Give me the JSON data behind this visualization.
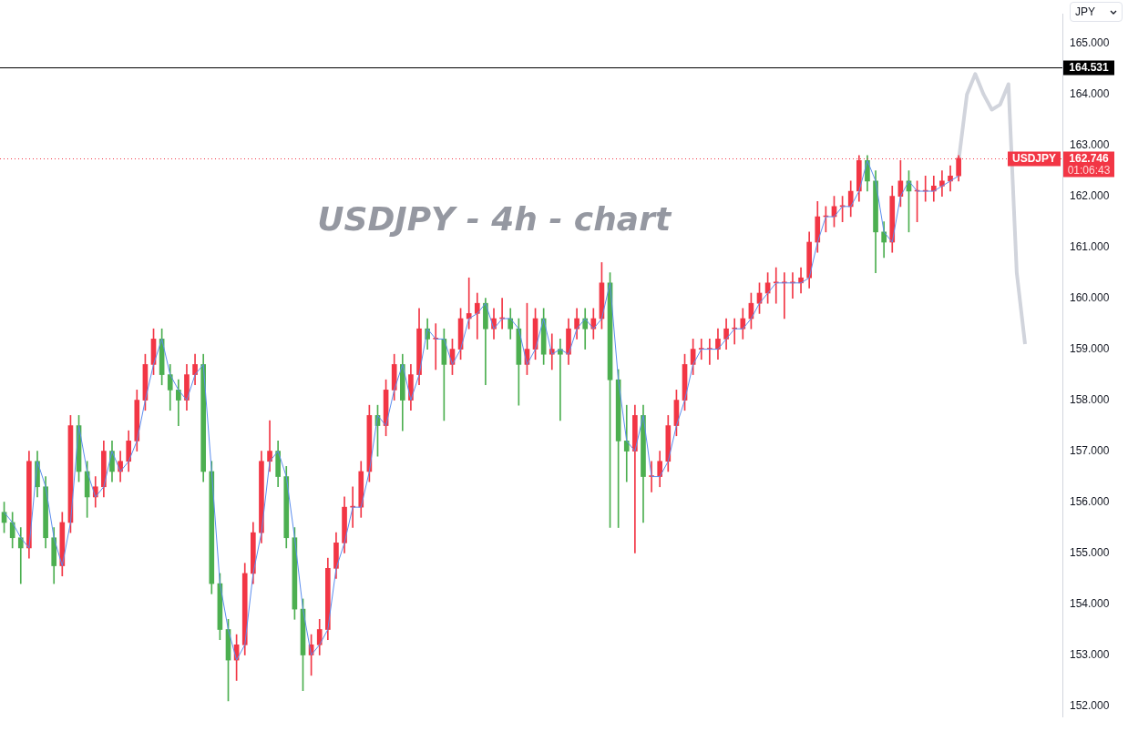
{
  "chart_data": {
    "type": "candlestick",
    "title": "USDJPY - 4h - chart",
    "categories": [
      null,
      null,
      null,
      null,
      null,
      null,
      null,
      null,
      null,
      null,
      null,
      null,
      null,
      null,
      null,
      null,
      null,
      null,
      null,
      null,
      null,
      null,
      null,
      null,
      null,
      null,
      null,
      null,
      null,
      null,
      null,
      null,
      null,
      null,
      null,
      null,
      null,
      null,
      null,
      null,
      null,
      null,
      null,
      null,
      null,
      null,
      null,
      null,
      null,
      null,
      null,
      null,
      null,
      null,
      null,
      null,
      null,
      null,
      null,
      null,
      null,
      null,
      null,
      null,
      null,
      null,
      null,
      null,
      null,
      null,
      null,
      null,
      null,
      null,
      null,
      null,
      null,
      null,
      null,
      null,
      null,
      null,
      null,
      null,
      null,
      null,
      null,
      null,
      null,
      null,
      null,
      null,
      null,
      null,
      null,
      null,
      null,
      null,
      null,
      null,
      null,
      null,
      null,
      null,
      null,
      null,
      null,
      null,
      null,
      null,
      null,
      null,
      null,
      null,
      null,
      null,
      null,
      null,
      null,
      null,
      null,
      null,
      null,
      null,
      null,
      null,
      null,
      null
    ],
    "series": [
      {
        "type": "line",
        "color": "#d1d4dc",
        "values": [
          null,
          null,
          null,
          null,
          null,
          null,
          null,
          null,
          null,
          null,
          null,
          null,
          null,
          null,
          null,
          null,
          null,
          null,
          null,
          null,
          null,
          null,
          null,
          null,
          null,
          null,
          null,
          null,
          null,
          null,
          null,
          null,
          null,
          null,
          null,
          null,
          null,
          null,
          null,
          null,
          null,
          null,
          null,
          null,
          null,
          null,
          null,
          null,
          null,
          null,
          null,
          null,
          null,
          null,
          null,
          null,
          null,
          null,
          null,
          null,
          null,
          null,
          null,
          null,
          null,
          null,
          null,
          null,
          null,
          null,
          null,
          null,
          null,
          null,
          null,
          null,
          null,
          null,
          null,
          null,
          null,
          null,
          null,
          null,
          null,
          null,
          null,
          null,
          null,
          null,
          null,
          null,
          null,
          null,
          null,
          null,
          null,
          null,
          null,
          null,
          null,
          null,
          null,
          null,
          null,
          null,
          null,
          null,
          null,
          null,
          null,
          null,
          null,
          null,
          null,
          162.7,
          164.0,
          164.4,
          164.0,
          163.7,
          163.8,
          164.2,
          160.5,
          159.1,
          null,
          null,
          null,
          null
        ]
      },
      {
        "ohlc": [
          [
            155.8,
            156.0,
            155.4,
            155.6
          ],
          [
            155.6,
            155.8,
            155.1,
            155.3
          ],
          [
            155.3,
            155.5,
            154.4,
            155.1
          ],
          [
            155.1,
            157.0,
            154.9,
            156.8
          ],
          [
            156.8,
            157.0,
            156.1,
            156.3
          ],
          [
            156.3,
            156.5,
            155.1,
            155.3
          ],
          [
            155.3,
            155.5,
            154.4,
            154.75
          ],
          [
            154.75,
            155.8,
            154.55,
            155.6
          ],
          [
            155.6,
            157.7,
            155.4,
            157.5
          ],
          [
            157.5,
            157.7,
            156.4,
            156.6
          ],
          [
            156.6,
            156.8,
            155.7,
            156.1
          ],
          [
            156.1,
            156.5,
            155.9,
            156.3
          ],
          [
            156.3,
            157.2,
            156.1,
            157.0
          ],
          [
            157.0,
            157.2,
            156.4,
            156.6
          ],
          [
            156.6,
            157.0,
            156.4,
            156.8
          ],
          [
            156.8,
            157.4,
            156.6,
            157.2
          ],
          [
            157.2,
            158.2,
            157.0,
            158.0
          ],
          [
            158.0,
            158.9,
            157.8,
            158.7
          ],
          [
            158.7,
            159.4,
            158.5,
            159.2
          ],
          [
            159.2,
            159.4,
            158.3,
            158.5
          ],
          [
            158.5,
            158.7,
            157.8,
            158.2
          ],
          [
            158.2,
            158.4,
            157.5,
            158.0
          ],
          [
            158.0,
            158.7,
            157.8,
            158.5
          ],
          [
            158.5,
            158.9,
            158.3,
            158.7
          ],
          [
            158.7,
            158.9,
            156.4,
            156.6
          ],
          [
            156.6,
            156.8,
            154.2,
            154.4
          ],
          [
            154.4,
            154.6,
            153.3,
            153.5
          ],
          [
            153.5,
            153.7,
            152.1,
            152.9
          ],
          [
            152.9,
            153.4,
            152.5,
            153.2
          ],
          [
            153.2,
            154.8,
            153.0,
            154.6
          ],
          [
            154.6,
            155.6,
            154.4,
            155.4
          ],
          [
            155.4,
            157.0,
            155.2,
            156.8
          ],
          [
            156.8,
            157.6,
            156.6,
            157.0
          ],
          [
            157.0,
            157.2,
            156.3,
            156.5
          ],
          [
            156.5,
            156.7,
            155.1,
            155.3
          ],
          [
            155.3,
            155.5,
            153.7,
            153.9
          ],
          [
            153.9,
            154.1,
            152.3,
            153.0
          ],
          [
            153.0,
            153.4,
            152.6,
            153.2
          ],
          [
            153.2,
            153.7,
            153.0,
            153.5
          ],
          [
            153.5,
            154.9,
            153.3,
            154.7
          ],
          [
            154.7,
            155.4,
            154.5,
            155.2
          ],
          [
            155.2,
            156.1,
            155.0,
            155.9
          ],
          [
            155.9,
            156.3,
            155.5,
            155.9
          ],
          [
            155.9,
            156.8,
            155.7,
            156.6
          ],
          [
            156.6,
            157.9,
            156.4,
            157.7
          ],
          [
            157.7,
            157.9,
            156.9,
            157.5
          ],
          [
            157.5,
            158.4,
            157.3,
            158.2
          ],
          [
            158.2,
            158.9,
            158.0,
            158.7
          ],
          [
            158.7,
            158.9,
            157.4,
            158.0
          ],
          [
            158.0,
            158.7,
            157.8,
            158.5
          ],
          [
            158.5,
            159.8,
            158.3,
            159.4
          ],
          [
            159.4,
            159.6,
            159.0,
            159.2
          ],
          [
            159.2,
            159.5,
            158.6,
            159.2
          ],
          [
            159.2,
            159.4,
            157.6,
            158.7
          ],
          [
            158.7,
            159.2,
            158.5,
            159.0
          ],
          [
            159.0,
            159.8,
            158.8,
            159.6
          ],
          [
            159.6,
            160.4,
            159.4,
            159.7
          ],
          [
            159.7,
            160.1,
            159.2,
            159.9
          ],
          [
            159.9,
            160.0,
            158.3,
            159.4
          ],
          [
            159.4,
            159.8,
            159.2,
            159.6
          ],
          [
            159.6,
            160.0,
            159.4,
            159.6
          ],
          [
            159.6,
            159.8,
            159.2,
            159.4
          ],
          [
            159.4,
            159.6,
            157.9,
            158.7
          ],
          [
            158.7,
            159.9,
            158.5,
            159.0
          ],
          [
            159.0,
            159.8,
            158.8,
            159.6
          ],
          [
            159.6,
            159.8,
            158.7,
            158.9
          ],
          [
            158.9,
            159.3,
            158.6,
            159.0
          ],
          [
            159.0,
            159.2,
            157.6,
            158.9
          ],
          [
            158.9,
            159.6,
            158.7,
            159.4
          ],
          [
            159.4,
            159.8,
            159.2,
            159.6
          ],
          [
            159.6,
            159.8,
            159.0,
            159.4
          ],
          [
            159.4,
            159.8,
            159.2,
            159.6
          ],
          [
            159.6,
            160.7,
            159.4,
            160.3
          ],
          [
            160.3,
            160.5,
            155.5,
            158.4
          ],
          [
            158.4,
            158.6,
            155.5,
            157.2
          ],
          [
            157.2,
            157.9,
            156.4,
            157.0
          ],
          [
            157.0,
            157.9,
            155.0,
            157.7
          ],
          [
            157.7,
            157.9,
            155.6,
            156.5
          ],
          [
            156.5,
            156.8,
            156.2,
            156.5
          ],
          [
            156.5,
            157.0,
            156.3,
            156.8
          ],
          [
            156.8,
            157.7,
            156.6,
            157.5
          ],
          [
            157.5,
            158.2,
            157.3,
            158.0
          ],
          [
            158.0,
            158.9,
            157.8,
            158.7
          ],
          [
            158.7,
            159.2,
            158.5,
            159.0
          ],
          [
            159.0,
            159.2,
            158.8,
            159.0
          ],
          [
            159.0,
            159.2,
            158.7,
            159.0
          ],
          [
            159.0,
            159.4,
            158.8,
            159.2
          ],
          [
            159.2,
            159.6,
            159.0,
            159.4
          ],
          [
            159.4,
            159.6,
            159.1,
            159.4
          ],
          [
            159.4,
            159.8,
            159.2,
            159.6
          ],
          [
            159.6,
            160.1,
            159.4,
            159.9
          ],
          [
            159.9,
            160.3,
            159.7,
            160.1
          ],
          [
            160.1,
            160.5,
            159.9,
            160.3
          ],
          [
            160.3,
            160.6,
            159.9,
            160.3
          ],
          [
            160.3,
            160.5,
            159.6,
            160.3
          ],
          [
            160.3,
            160.5,
            160.0,
            160.3
          ],
          [
            160.3,
            160.6,
            160.1,
            160.4
          ],
          [
            160.4,
            161.3,
            160.2,
            161.1
          ],
          [
            161.1,
            161.9,
            160.9,
            161.6
          ],
          [
            161.6,
            161.8,
            161.3,
            161.6
          ],
          [
            161.6,
            162.0,
            161.4,
            161.8
          ],
          [
            161.8,
            162.0,
            161.5,
            161.8
          ],
          [
            161.8,
            162.3,
            161.6,
            162.1
          ],
          [
            162.1,
            162.8,
            161.9,
            162.7
          ],
          [
            162.7,
            162.8,
            162.1,
            162.3
          ],
          [
            162.3,
            162.5,
            160.5,
            161.3
          ],
          [
            161.3,
            161.5,
            160.8,
            161.1
          ],
          [
            161.1,
            162.2,
            160.9,
            162.0
          ],
          [
            162.0,
            162.7,
            161.8,
            162.3
          ],
          [
            162.3,
            162.5,
            161.3,
            162.1
          ],
          [
            162.1,
            162.3,
            161.5,
            162.1
          ],
          [
            162.1,
            162.4,
            161.9,
            162.1
          ],
          [
            162.1,
            162.4,
            161.9,
            162.2
          ],
          [
            162.2,
            162.5,
            162.0,
            162.3
          ],
          [
            162.3,
            162.6,
            162.1,
            162.4
          ],
          [
            162.4,
            162.8,
            162.3,
            162.746
          ],
          null,
          null,
          null,
          null,
          null,
          null,
          null,
          null,
          null,
          null,
          null,
          null
        ],
        "colors": [
          "#4caf50",
          "#4caf50",
          "#4caf50",
          "#f23645",
          "#4caf50",
          "#4caf50",
          "#4caf50",
          "#f23645",
          "#f23645",
          "#4caf50",
          "#4caf50",
          "#f23645",
          "#f23645",
          "#4caf50",
          "#f23645",
          "#f23645",
          "#f23645",
          "#f23645",
          "#f23645",
          "#4caf50",
          "#4caf50",
          "#4caf50",
          "#f23645",
          "#f23645",
          "#4caf50",
          "#4caf50",
          "#4caf50",
          "#4caf50",
          "#f23645",
          "#f23645",
          "#f23645",
          "#f23645",
          "#f23645",
          "#4caf50",
          "#4caf50",
          "#4caf50",
          "#4caf50",
          "#f23645",
          "#f23645",
          "#f23645",
          "#f23645",
          "#f23645",
          "#f23645",
          "#f23645",
          "#f23645",
          "#4caf50",
          "#f23645",
          "#f23645",
          "#4caf50",
          "#f23645",
          "#f23645",
          "#4caf50",
          "#f23645",
          "#4caf50",
          "#f23645",
          "#f23645",
          "#f23645",
          "#f23645",
          "#4caf50",
          "#f23645",
          "#f23645",
          "#4caf50",
          "#4caf50",
          "#f23645",
          "#f23645",
          "#4caf50",
          "#f23645",
          "#4caf50",
          "#f23645",
          "#f23645",
          "#4caf50",
          "#f23645",
          "#f23645",
          "#4caf50",
          "#4caf50",
          "#4caf50",
          "#f23645",
          "#4caf50",
          "#f23645",
          "#f23645",
          "#f23645",
          "#f23645",
          "#f23645",
          "#f23645",
          "#f23645",
          "#f23645",
          "#f23645",
          "#f23645",
          "#f23645",
          "#f23645",
          "#f23645",
          "#f23645",
          "#f23645",
          "#f23645",
          "#f23645",
          "#f23645",
          "#f23645",
          "#f23645",
          "#f23645",
          "#f23645",
          "#f23645",
          "#f23645",
          "#f23645",
          "#f23645",
          "#4caf50",
          "#4caf50",
          "#4caf50",
          "#f23645",
          "#f23645",
          "#4caf50",
          "#f23645",
          "#f23645",
          "#f23645",
          "#f23645",
          "#f23645",
          "#f23645",
          null,
          null,
          null,
          null,
          null,
          null,
          null,
          null,
          null,
          null,
          null,
          null
        ]
      },
      {
        "type": "line",
        "color": "#5b8def",
        "values": [
          155.8,
          155.6,
          155.3,
          155.1,
          156.8,
          156.3,
          155.3,
          154.75,
          155.6,
          157.5,
          156.6,
          156.1,
          156.3,
          157.0,
          156.6,
          156.8,
          157.2,
          158.0,
          158.7,
          159.2,
          158.5,
          158.2,
          158.0,
          158.5,
          158.7,
          156.6,
          154.4,
          153.5,
          152.9,
          153.2,
          154.6,
          155.4,
          156.8,
          157.0,
          156.5,
          155.3,
          153.9,
          153.0,
          153.2,
          153.5,
          154.7,
          155.2,
          155.9,
          155.9,
          156.6,
          157.7,
          157.5,
          158.2,
          158.7,
          158.0,
          158.5,
          159.4,
          159.2,
          159.2,
          158.7,
          159.0,
          159.6,
          159.7,
          159.9,
          159.4,
          159.6,
          159.6,
          159.4,
          158.7,
          159.0,
          159.6,
          158.9,
          159.0,
          158.9,
          159.4,
          159.6,
          159.4,
          159.6,
          160.3,
          158.4,
          157.2,
          157.0,
          157.7,
          156.5,
          156.5,
          156.8,
          157.5,
          158.0,
          158.7,
          159.0,
          159.0,
          159.0,
          159.2,
          159.4,
          159.4,
          159.6,
          159.9,
          160.1,
          160.3,
          160.3,
          160.3,
          160.3,
          160.4,
          161.1,
          161.6,
          161.6,
          161.8,
          161.8,
          162.1,
          162.7,
          162.3,
          161.3,
          161.1,
          162.0,
          162.3,
          162.1,
          162.1,
          162.1,
          162.2,
          162.3,
          162.4,
          null,
          null,
          null,
          null,
          null,
          null,
          null,
          null,
          null,
          null,
          null,
          null
        ]
      }
    ],
    "ylim": [
      151.78,
      165.58
    ],
    "yticks": [
      {
        "value": 152,
        "label": "152.000"
      },
      {
        "value": 153,
        "label": "153.000"
      },
      {
        "value": 154,
        "label": "154.000"
      },
      {
        "value": 155,
        "label": "155.000"
      },
      {
        "value": 156,
        "label": "156.000"
      },
      {
        "value": 157,
        "label": "157.000"
      },
      {
        "value": 158,
        "label": "158.000"
      },
      {
        "value": 159,
        "label": "159.000"
      },
      {
        "value": 160,
        "label": "160.000"
      },
      {
        "value": 161,
        "label": "161.000"
      },
      {
        "value": 162,
        "label": "162.000"
      },
      {
        "value": 163,
        "label": "163.000"
      },
      {
        "value": 164,
        "label": "164.000"
      },
      {
        "value": 165,
        "label": "165.000"
      }
    ],
    "ref_lines": [
      {
        "axis": "y",
        "value": 164.531,
        "label": "164.531",
        "color": "#000000",
        "line_style": "solid"
      },
      {
        "axis": "y",
        "value": 162.746,
        "label": "162.746",
        "color": "#f23645",
        "line_style": "dotted"
      }
    ],
    "annotations": [
      "JPY",
      {
        "text": "USDJPY",
        "y": 162.746
      },
      "01:06:43"
    ],
    "tick_labels": "y",
    "grid": false,
    "legend": false
  }
}
